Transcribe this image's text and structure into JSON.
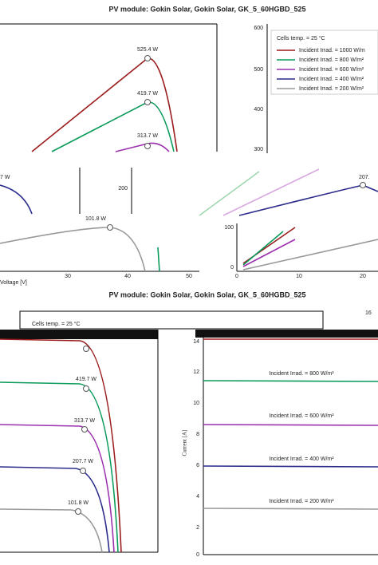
{
  "top": {
    "title": "PV module: Gokin Solar, Gokin Solar, GK_5_60HGBD_525",
    "left_plot": {
      "peaks": [
        "525.4 W",
        "419.7 W",
        "313.7 W"
      ]
    },
    "right_plot": {
      "yticks": [
        "600",
        "500",
        "400",
        "300"
      ],
      "legend": {
        "title": "Cells temp. = 25 °C",
        "entries": [
          "Incident Irrad. = 1000 W/m",
          "Incident Irrad. = 800 W/m²",
          "Incident Irrad. = 600 W/m²",
          "Incident Irrad. = 400 W/m²",
          "Incident Irrad. = 200 W/m²"
        ]
      }
    },
    "lower_left": {
      "xticks": [
        "30",
        "40",
        "50"
      ],
      "xlabel": "Voltage [V]"
    },
    "lower_right": {
      "yticks": [
        "100",
        "0"
      ],
      "xticks": [
        "0",
        "10",
        "20"
      ]
    }
  },
  "middle": {
    "fragments": [
      "7 W",
      "200",
      "207.",
      "101.8 W"
    ]
  },
  "bottom": {
    "title": "PV module: Gokin Solar, Gokin Solar, GK_5_60HGBD_525",
    "legend_title": "Cells temp. = 25 °C",
    "fragment": "16",
    "left_plot": {
      "peaks": [
        "419.7 W",
        "313.7 W",
        "207.7 W",
        "101.8 W"
      ]
    },
    "right_plot": {
      "yticks": [
        "14",
        "12",
        "10",
        "8",
        "6",
        "4",
        "2",
        "0"
      ],
      "ylabel": "Current [A]",
      "labels": [
        "Incident Irrad. = 800 W/m²",
        "Incident Irrad. = 600 W/m²",
        "Incident Irrad. = 400 W/m²",
        "Incident Irrad. = 200 W/m²"
      ]
    }
  }
}
